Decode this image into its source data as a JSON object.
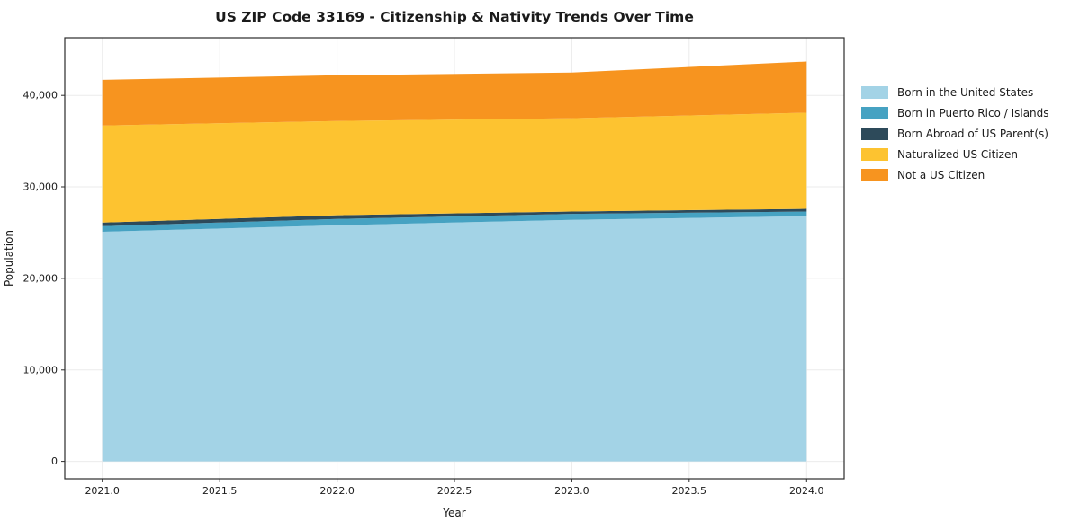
{
  "chart_data": {
    "type": "area",
    "stacked": true,
    "title": "US ZIP Code 33169 - Citizenship & Nativity Trends Over Time",
    "xlabel": "Year",
    "ylabel": "Population",
    "x": [
      2021,
      2022,
      2023,
      2024
    ],
    "series": [
      {
        "name": "Born in the United States",
        "color": "#a3d3e6",
        "values": [
          25100,
          25800,
          26400,
          26800
        ]
      },
      {
        "name": "Born in Puerto Rico / Islands",
        "color": "#46a2c2",
        "values": [
          600,
          700,
          650,
          500
        ]
      },
      {
        "name": "Born Abroad of US Parent(s)",
        "color": "#2d4a5a",
        "values": [
          400,
          400,
          250,
          300
        ]
      },
      {
        "name": "Naturalized US Citizen",
        "color": "#fdc330",
        "values": [
          10600,
          10300,
          10200,
          10500
        ]
      },
      {
        "name": "Not a US Citizen",
        "color": "#f7941f",
        "values": [
          5000,
          5000,
          5000,
          5600
        ]
      }
    ],
    "xlim": [
      2020.84,
      2024.16
    ],
    "ylim": [
      -1900,
      46300
    ],
    "xticks": [
      2021.0,
      2021.5,
      2022.0,
      2022.5,
      2023.0,
      2023.5,
      2024.0
    ],
    "xtick_labels": [
      "2021.0",
      "2021.5",
      "2022.0",
      "2022.5",
      "2023.0",
      "2023.5",
      "2024.0"
    ],
    "yticks": [
      0,
      10000,
      20000,
      30000,
      40000
    ],
    "ytick_labels": [
      "0",
      "10,000",
      "20,000",
      "30,000",
      "40,000"
    ],
    "grid": true,
    "legend_position": "right"
  }
}
